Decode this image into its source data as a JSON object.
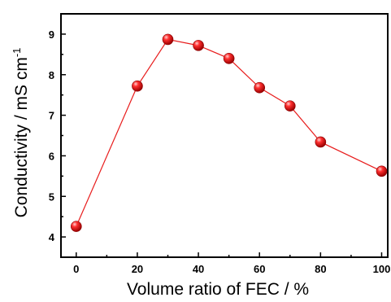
{
  "chart_data": {
    "type": "line",
    "title": "",
    "xlabel": "Volume ratio of FEC / %",
    "ylabel": "Conductivity / mS cm",
    "ylabel_superscript": "-1",
    "xlim": [
      -5,
      102
    ],
    "ylim": [
      3.5,
      9.5
    ],
    "xticks": [
      0,
      20,
      40,
      60,
      80,
      100
    ],
    "yticks": [
      4,
      5,
      6,
      7,
      8,
      9
    ],
    "grid": false,
    "legend": "none",
    "series": [
      {
        "x": [
          0,
          20,
          30,
          40,
          50,
          60,
          70,
          80,
          100
        ],
        "y": [
          4.26,
          7.72,
          8.87,
          8.72,
          8.4,
          7.68,
          7.23,
          6.34,
          5.62
        ],
        "color": "#e81c1c",
        "marker": "sphere"
      }
    ]
  }
}
